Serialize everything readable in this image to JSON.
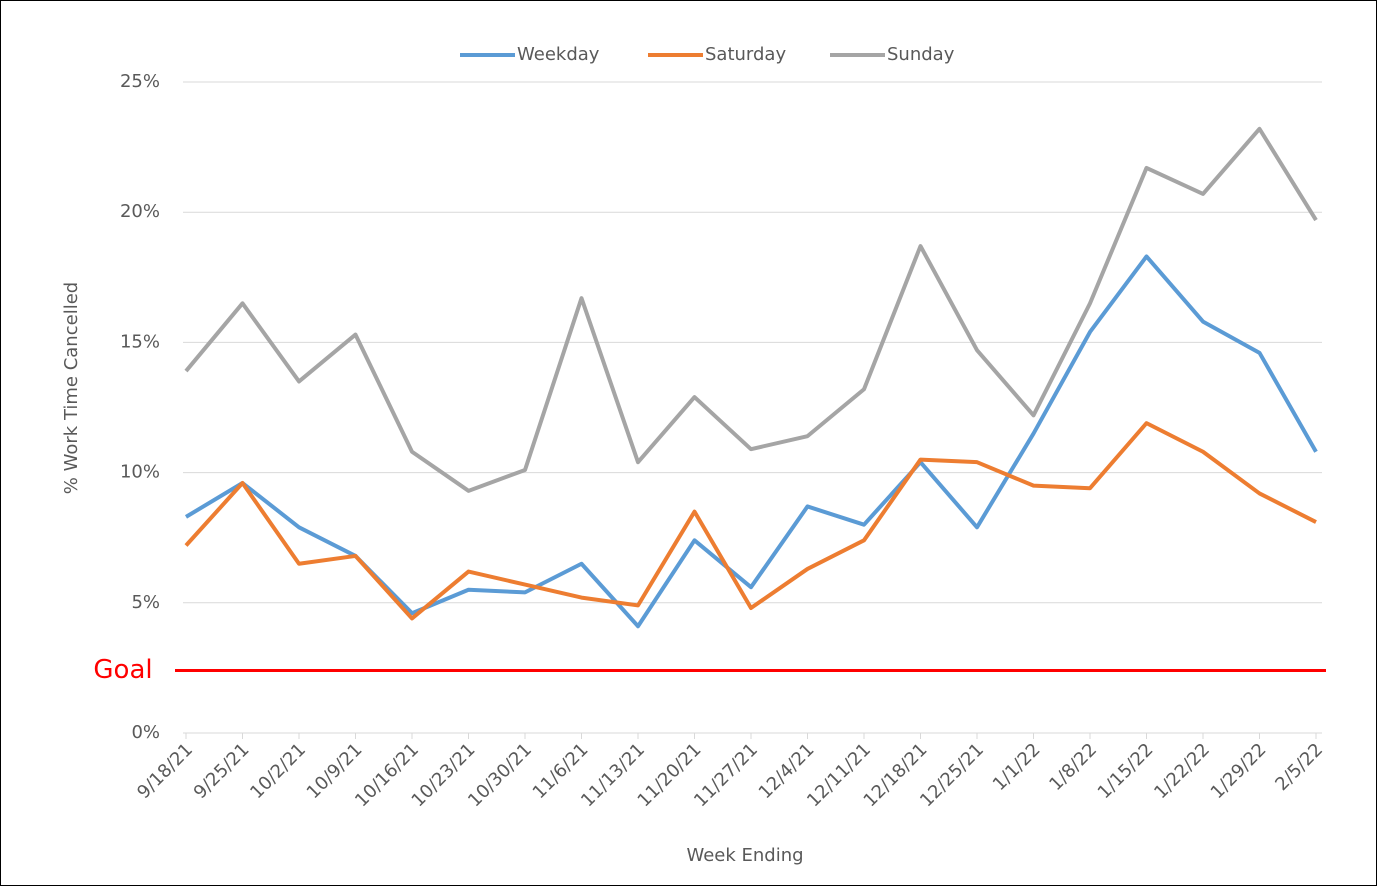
{
  "chart_data": {
    "type": "line",
    "x_label": "Week Ending",
    "y_label": "% Work Time Cancelled",
    "categories": [
      "9/18/21",
      "9/25/21",
      "10/2/21",
      "10/9/21",
      "10/16/21",
      "10/23/21",
      "10/30/21",
      "11/6/21",
      "11/13/21",
      "11/20/21",
      "11/27/21",
      "12/4/21",
      "12/11/21",
      "12/18/21",
      "12/25/21",
      "1/1/22",
      "1/8/22",
      "1/15/22",
      "1/22/22",
      "1/29/22",
      "2/5/22"
    ],
    "series": [
      {
        "name": "Weekday",
        "color": "#5b9bd5",
        "values": [
          8.3,
          9.6,
          7.9,
          6.8,
          4.6,
          5.5,
          5.4,
          6.5,
          4.1,
          7.4,
          5.6,
          8.7,
          8.0,
          10.4,
          7.9,
          11.5,
          15.4,
          18.3,
          15.8,
          14.6,
          10.8
        ]
      },
      {
        "name": "Saturday",
        "color": "#ed7d31",
        "values": [
          7.2,
          9.6,
          6.5,
          6.8,
          4.4,
          6.2,
          5.7,
          5.2,
          4.9,
          8.5,
          4.8,
          6.3,
          7.4,
          10.5,
          10.4,
          9.5,
          9.4,
          11.9,
          10.8,
          9.2,
          8.1
        ]
      },
      {
        "name": "Sunday",
        "color": "#a5a5a5",
        "values": [
          13.9,
          16.5,
          13.5,
          15.3,
          10.8,
          9.3,
          10.1,
          16.7,
          10.4,
          12.9,
          10.9,
          11.4,
          13.2,
          18.7,
          14.7,
          12.2,
          16.5,
          21.7,
          20.7,
          23.2,
          19.7
        ]
      }
    ],
    "ylim": [
      0,
      25
    ],
    "yticks": [
      {
        "value": 0,
        "label": "0%"
      },
      {
        "value": 5,
        "label": "5%"
      },
      {
        "value": 10,
        "label": "10%"
      },
      {
        "value": 15,
        "label": "15%"
      },
      {
        "value": 20,
        "label": "20%"
      },
      {
        "value": 25,
        "label": "25%"
      }
    ],
    "grid": true,
    "legend": "top",
    "goal": {
      "label": "Goal",
      "value": 2.4,
      "color": "#ff0000"
    }
  }
}
